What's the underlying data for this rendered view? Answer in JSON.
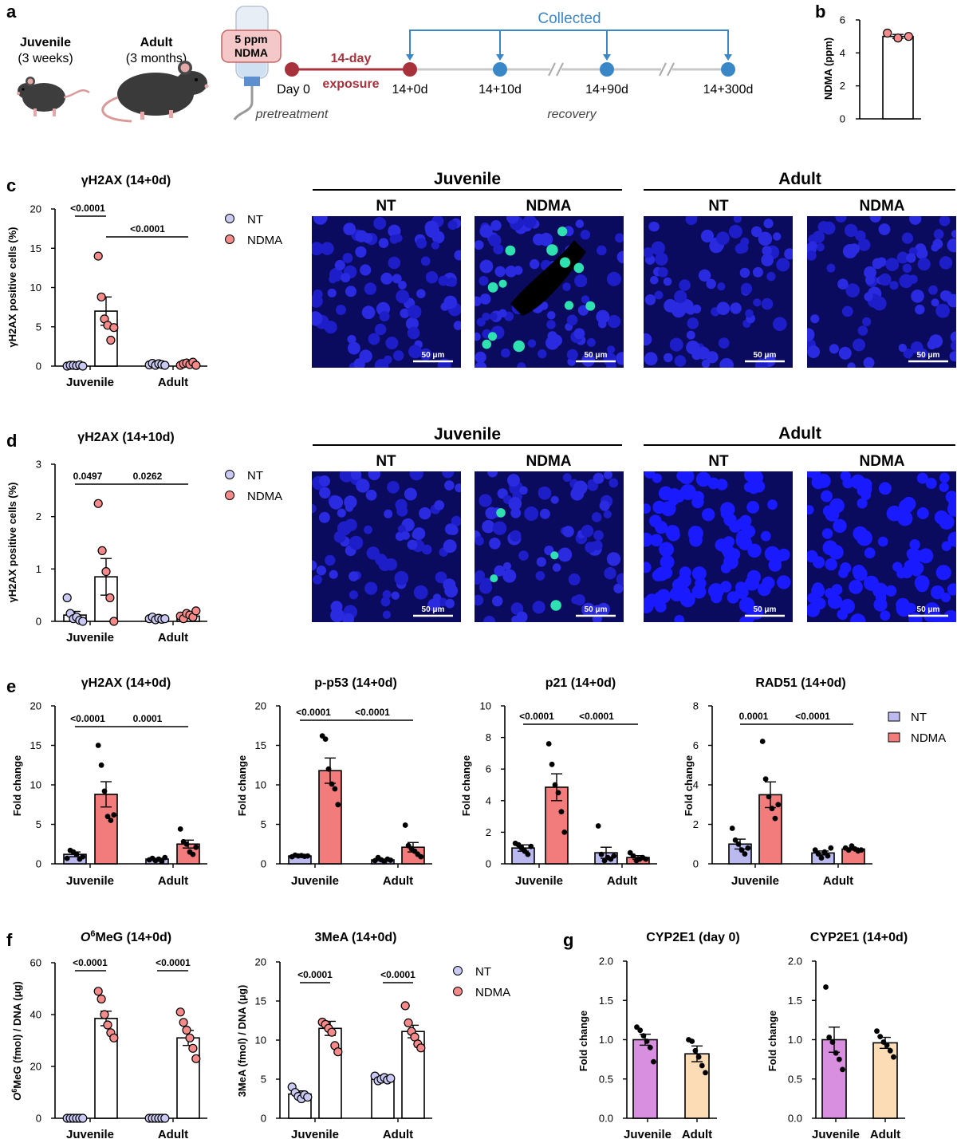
{
  "colors": {
    "nt_fill": "#c9c9f4",
    "nt_bar": "#babaf0",
    "ndma_fill": "#f48a8a",
    "ndma_bar": "#f27c7c",
    "cyp_juv": "#d88fe0",
    "cyp_adult": "#fbdcb4",
    "timeline_red": "#a8323c",
    "timeline_blue": "#3a87c8",
    "micro_bg": "#0a0a5e"
  },
  "panel_labels": [
    "a",
    "b",
    "c",
    "d",
    "e",
    "f",
    "g"
  ],
  "schematic": {
    "juvenile_label": "Juvenile",
    "juvenile_age": "(3 weeks)",
    "adult_label": "Adult",
    "adult_age": "(3 months)",
    "bottle_line1": "5 ppm",
    "bottle_line2": "NDMA",
    "day0": "Day 0",
    "exposure_line1": "14-day",
    "exposure_line2": "exposure",
    "timepoints": [
      "14+0d",
      "14+10d",
      "14+90d",
      "14+300d"
    ],
    "collected": "Collected",
    "pretreatment": "pretreatment",
    "recovery": "recovery"
  },
  "micrographs": {
    "group_labels": [
      "Juvenile",
      "Adult"
    ],
    "column_labels": [
      "NT",
      "NDMA",
      "NT",
      "NDMA"
    ],
    "scale_bar": "50 μm"
  },
  "legend": {
    "nt": "NT",
    "ndma": "NDMA"
  },
  "chart_data": [
    {
      "id": "b",
      "type": "bar",
      "title": "",
      "xlabel": "",
      "ylabel": "NDMA (ppm)",
      "ylim": [
        0,
        6
      ],
      "yticks": [
        "0",
        "2",
        "4",
        "6"
      ],
      "categories": [
        ""
      ],
      "pvalues": [],
      "series": [
        {
          "style": "white",
          "means": [
            5.0
          ],
          "errors": [
            0.12
          ],
          "points": [
            [
              5.2,
              4.9,
              5.0
            ]
          ]
        }
      ]
    },
    {
      "id": "c",
      "type": "bar",
      "title": "γH2AX (14+0d)",
      "xlabel": "",
      "ylabel": "γH2AX positive cells (%)",
      "ylim": [
        0,
        20
      ],
      "yticks": [
        "0",
        "5",
        "10",
        "15",
        "20"
      ],
      "categories": [
        "Juvenile",
        "Adult"
      ],
      "pvalues": [
        "<0.0001",
        "<0.0001"
      ],
      "series": [
        {
          "name": "NT",
          "style": "white",
          "means": [
            0.1,
            0.2
          ],
          "errors": [
            0.05,
            0.1
          ],
          "points": [
            [
              0,
              0.1,
              0.1,
              0.05,
              0.15,
              0
            ],
            [
              0.15,
              0.35,
              0.1,
              0.3,
              0.2,
              0.1
            ]
          ]
        },
        {
          "name": "NDMA",
          "style": "white",
          "means": [
            7.0,
            0.3
          ],
          "errors": [
            1.8,
            0.1
          ],
          "points": [
            [
              14.0,
              8.8,
              6.0,
              5.2,
              3.3,
              4.9
            ],
            [
              0.1,
              0.3,
              0.4,
              0.2,
              0.5,
              0.1
            ]
          ]
        }
      ]
    },
    {
      "id": "d",
      "type": "bar",
      "title": "γH2AX (14+10d)",
      "xlabel": "",
      "ylabel": "γH2AX positive cells (%)",
      "ylim": [
        0,
        3
      ],
      "yticks": [
        "0",
        "1",
        "2",
        "3"
      ],
      "categories": [
        "Juvenile",
        "Adult"
      ],
      "pvalues": [
        "0.0497",
        "0.0262"
      ],
      "series": [
        {
          "name": "NT",
          "style": "white",
          "means": [
            0.12,
            0.05
          ],
          "errors": [
            0.07,
            0.02
          ],
          "points": [
            [
              0.45,
              0.15,
              0.05,
              0.08,
              0.02,
              0.0
            ],
            [
              0.05,
              0.08,
              0.03,
              0.06,
              0.04,
              0.05
            ]
          ]
        },
        {
          "name": "NDMA",
          "style": "white",
          "means": [
            0.85,
            0.1
          ],
          "errors": [
            0.35,
            0.03
          ],
          "points": [
            [
              2.25,
              1.35,
              0.95,
              0.45,
              0.0
            ],
            [
              0.1,
              0.05,
              0.15,
              0.12,
              0.08,
              0.2
            ]
          ]
        }
      ]
    },
    {
      "id": "e1",
      "type": "bar",
      "title": "γH2AX (14+0d)",
      "xlabel": "",
      "ylabel": "Fold change",
      "ylim": [
        0,
        20
      ],
      "yticks": [
        "0",
        "5",
        "10",
        "15",
        "20"
      ],
      "categories": [
        "Juvenile",
        "Adult"
      ],
      "pvalues": [
        "<0.0001",
        "0.0001"
      ],
      "series": [
        {
          "name": "NT",
          "style": "colored",
          "means": [
            1.2,
            0.6
          ],
          "errors": [
            0.3,
            0.1
          ],
          "points": [
            [
              0.7,
              1.7,
              1.5,
              1.2,
              0.6,
              0.9
            ],
            [
              0.5,
              0.7,
              0.4,
              0.6,
              0.3,
              0.8
            ]
          ]
        },
        {
          "name": "NDMA",
          "style": "colored",
          "means": [
            8.8,
            2.5
          ],
          "errors": [
            1.6,
            0.5
          ],
          "points": [
            [
              15.0,
              12.5,
              9.2,
              6.0,
              5.5,
              6.2
            ],
            [
              4.4,
              2.8,
              2.5,
              1.5,
              1.2,
              2.1
            ]
          ]
        }
      ]
    },
    {
      "id": "e2",
      "type": "bar",
      "title": "p-p53 (14+0d)",
      "xlabel": "",
      "ylabel": "Fold change",
      "ylim": [
        0,
        20
      ],
      "yticks": [
        "0",
        "5",
        "10",
        "15",
        "20"
      ],
      "categories": [
        "Juvenile",
        "Adult"
      ],
      "pvalues": [
        "<0.0001",
        "<0.0001"
      ],
      "series": [
        {
          "name": "NT",
          "style": "colored",
          "means": [
            1.0,
            0.5
          ],
          "errors": [
            0.05,
            0.1
          ],
          "points": [
            [
              0.9,
              1.1,
              1.0,
              1.05,
              0.95,
              1.0
            ],
            [
              0.4,
              0.8,
              0.5,
              0.3,
              0.6,
              0.45
            ]
          ]
        },
        {
          "name": "NDMA",
          "style": "colored",
          "means": [
            11.8,
            2.1
          ],
          "errors": [
            1.6,
            0.6
          ],
          "points": [
            [
              16.2,
              15.8,
              12.0,
              10.1,
              9.5,
              7.5
            ],
            [
              4.9,
              2.3,
              1.9,
              1.6,
              1.2,
              0.9
            ]
          ]
        }
      ]
    },
    {
      "id": "e3",
      "type": "bar",
      "title": "p21 (14+0d)",
      "xlabel": "",
      "ylabel": "Fold change",
      "ylim": [
        0,
        10
      ],
      "yticks": [
        "0",
        "2",
        "4",
        "6",
        "8",
        "10"
      ],
      "categories": [
        "Juvenile",
        "Adult"
      ],
      "pvalues": [
        "<0.0001",
        "<0.0001"
      ],
      "series": [
        {
          "name": "NT",
          "style": "colored",
          "means": [
            1.0,
            0.7
          ],
          "errors": [
            0.2,
            0.35
          ],
          "points": [
            [
              1.3,
              1.2,
              1.0,
              0.8,
              0.6,
              1.1
            ],
            [
              2.4,
              0.6,
              0.2,
              0.4,
              0.3,
              0.5
            ]
          ]
        },
        {
          "name": "NDMA",
          "style": "colored",
          "means": [
            4.85,
            0.4
          ],
          "errors": [
            0.85,
            0.12
          ],
          "points": [
            [
              7.6,
              6.3,
              5.0,
              4.5,
              3.3,
              2.0
            ],
            [
              0.7,
              0.5,
              0.2,
              0.3,
              0.4,
              0.3
            ]
          ]
        }
      ]
    },
    {
      "id": "e4",
      "type": "bar",
      "title": "RAD51 (14+0d)",
      "xlabel": "",
      "ylabel": "Fold change",
      "ylim": [
        0,
        8
      ],
      "yticks": [
        "0",
        "2",
        "4",
        "6",
        "8"
      ],
      "categories": [
        "Juvenile",
        "Adult"
      ],
      "pvalues": [
        "0.0001",
        "<0.0001"
      ],
      "series": [
        {
          "name": "NT",
          "style": "colored",
          "means": [
            1.0,
            0.55
          ],
          "errors": [
            0.25,
            0.1
          ],
          "points": [
            [
              1.8,
              1.2,
              1.0,
              0.7,
              0.5,
              0.8
            ],
            [
              0.7,
              0.5,
              0.3,
              0.6,
              0.4,
              0.8
            ]
          ]
        },
        {
          "name": "NDMA",
          "style": "colored",
          "means": [
            3.5,
            0.75
          ],
          "errors": [
            0.65,
            0.05
          ],
          "points": [
            [
              6.2,
              4.3,
              3.4,
              2.8,
              2.3,
              3.0
            ],
            [
              0.8,
              0.7,
              0.9,
              0.75,
              0.65,
              0.7
            ]
          ]
        }
      ]
    },
    {
      "id": "f1",
      "type": "bar",
      "title": "O6MeG (14+0d)",
      "xlabel": "",
      "ylabel": "O6MeG (fmol) / DNA (μg)",
      "ylim": [
        0,
        60
      ],
      "yticks": [
        "0",
        "20",
        "40",
        "60"
      ],
      "categories": [
        "Juvenile",
        "Adult"
      ],
      "pvalues": [
        "<0.0001",
        "<0.0001"
      ],
      "series": [
        {
          "name": "NT",
          "style": "white",
          "means": [
            0,
            0
          ],
          "errors": [
            0,
            0
          ],
          "points": [
            [
              0,
              0,
              0,
              0,
              0,
              0
            ],
            [
              0,
              0,
              0,
              0,
              0,
              0
            ]
          ]
        },
        {
          "name": "NDMA",
          "style": "white",
          "means": [
            38.5,
            31.0
          ],
          "errors": [
            2.8,
            2.9
          ],
          "points": [
            [
              49,
              46,
              40,
              36,
              33,
              31
            ],
            [
              41,
              37,
              34,
              31,
              27,
              23
            ]
          ]
        }
      ]
    },
    {
      "id": "f2",
      "type": "bar",
      "title": "3MeA (14+0d)",
      "xlabel": "",
      "ylabel": "3MeA (fmol) / DNA (μg)",
      "ylim": [
        0,
        20
      ],
      "yticks": [
        "0",
        "5",
        "10",
        "15",
        "20"
      ],
      "categories": [
        "Juvenile",
        "Adult"
      ],
      "pvalues": [
        "<0.0001",
        "<0.0001"
      ],
      "series": [
        {
          "name": "NT",
          "style": "white",
          "means": [
            3.1,
            5.0
          ],
          "errors": [
            0.4,
            0.2
          ],
          "points": [
            [
              4.0,
              3.3,
              2.8,
              2.5,
              3.0,
              2.7
            ],
            [
              5.4,
              4.8,
              5.0,
              5.2,
              4.9,
              5.1
            ]
          ]
        },
        {
          "name": "NDMA",
          "style": "white",
          "means": [
            11.5,
            11.1
          ],
          "errors": [
            0.9,
            0.8
          ],
          "points": [
            [
              12.3,
              12.0,
              11.5,
              11.0,
              9.3,
              8.5
            ],
            [
              14.4,
              12.2,
              11.1,
              10.4,
              9.5,
              9.0
            ]
          ]
        }
      ]
    },
    {
      "id": "g1",
      "type": "bar",
      "title": "CYP2E1 (day 0)",
      "xlabel": "",
      "ylabel": "Fold change",
      "ylim": [
        0,
        2
      ],
      "yticks": [
        "0.0",
        "0.5",
        "1.0",
        "1.5",
        "2.0"
      ],
      "categories": [
        "Juvenile",
        "Adult"
      ],
      "pvalues": [],
      "series": [
        {
          "style": "cyp",
          "means": [
            1.0,
            0.82
          ],
          "errors": [
            0.07,
            0.1
          ],
          "points": [
            [
              1.16,
              1.12,
              1.05,
              0.98,
              0.9,
              0.72
            ],
            [
              1.0,
              0.98,
              0.86,
              0.78,
              0.67,
              0.58
            ]
          ]
        }
      ]
    },
    {
      "id": "g2",
      "type": "bar",
      "title": "CYP2E1 (14+0d)",
      "xlabel": "",
      "ylabel": "Fold change",
      "ylim": [
        0,
        2
      ],
      "yticks": [
        "0.0",
        "0.5",
        "1.0",
        "1.5",
        "2.0"
      ],
      "categories": [
        "Juvenile",
        "Adult"
      ],
      "pvalues": [],
      "series": [
        {
          "style": "cyp",
          "means": [
            1.0,
            0.96
          ],
          "errors": [
            0.16,
            0.07
          ],
          "points": [
            [
              1.67,
              1.03,
              0.97,
              0.83,
              0.75,
              0.62
            ],
            [
              1.11,
              1.04,
              0.97,
              0.93,
              0.86,
              0.78
            ]
          ]
        }
      ]
    }
  ]
}
